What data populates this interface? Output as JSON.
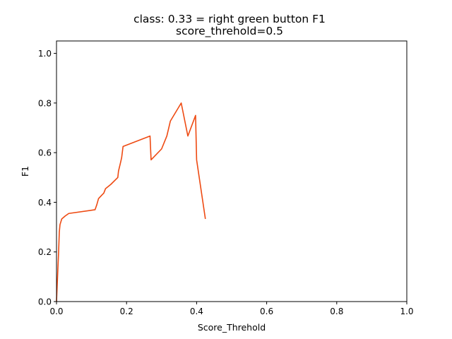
{
  "chart_data": {
    "type": "line",
    "title_line1": "class: 0.33 = right green button F1",
    "title_line2": "score_threhold=0.5",
    "xlabel": "Score_Threhold",
    "ylabel": "F1",
    "xlim": [
      0.0,
      1.0
    ],
    "ylim": [
      0.0,
      1.05
    ],
    "xticks": [
      0.0,
      0.2,
      0.4,
      0.6,
      0.8,
      1.0
    ],
    "xtick_labels": [
      "0.0",
      "0.2",
      "0.4",
      "0.6",
      "0.8",
      "1.0"
    ],
    "yticks": [
      0.0,
      0.2,
      0.4,
      0.6,
      0.8,
      1.0
    ],
    "ytick_labels": [
      "0.0",
      "0.2",
      "0.4",
      "0.6",
      "0.8",
      "1.0"
    ],
    "grid": false,
    "line_color": "#ee4a12",
    "series": [
      {
        "x": [
          0.0,
          0.003,
          0.006,
          0.008,
          0.01,
          0.015,
          0.025,
          0.035,
          0.11,
          0.115,
          0.12,
          0.13,
          0.135,
          0.14,
          0.155,
          0.175,
          0.177,
          0.182,
          0.186,
          0.19,
          0.267,
          0.27,
          0.3,
          0.315,
          0.325,
          0.356,
          0.375,
          0.397,
          0.4,
          0.425
        ],
        "y": [
          0.0,
          0.1,
          0.2,
          0.28,
          0.31,
          0.333,
          0.345,
          0.355,
          0.37,
          0.39,
          0.415,
          0.43,
          0.437,
          0.455,
          0.472,
          0.5,
          0.526,
          0.555,
          0.58,
          0.625,
          0.667,
          0.571,
          0.615,
          0.667,
          0.727,
          0.8,
          0.667,
          0.75,
          0.571,
          0.333
        ]
      }
    ]
  }
}
